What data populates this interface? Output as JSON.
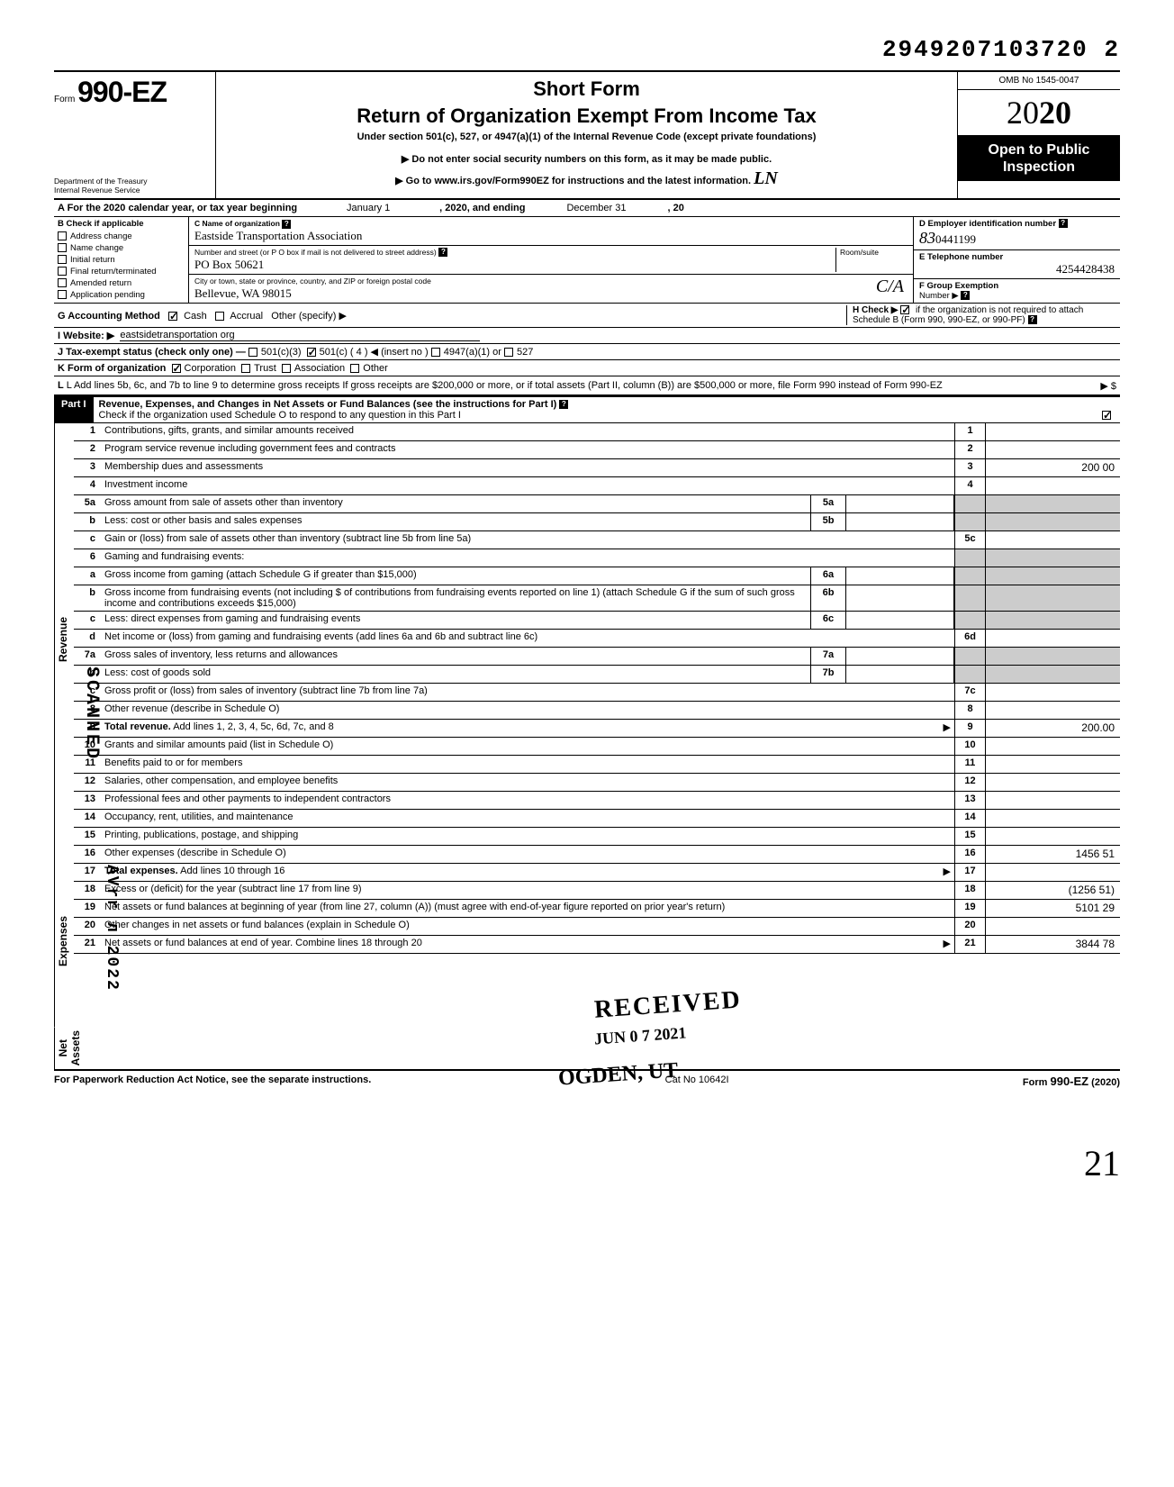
{
  "top_id": "2949207103720 2",
  "form": {
    "prefix": "Form",
    "number": "990-EZ",
    "dept": "Department of the Treasury\nInternal Revenue Service"
  },
  "header": {
    "short_form": "Short Form",
    "title": "Return of Organization Exempt From Income Tax",
    "under": "Under section 501(c), 527, or 4947(a)(1) of the Internal Revenue Code (except private foundations)",
    "note1": "▶ Do not enter social security numbers on this form, as it may be made public.",
    "note2": "▶ Go to www.irs.gov/Form990EZ for instructions and the latest information."
  },
  "right": {
    "omb": "OMB No 1545-0047",
    "year_light": "20",
    "year_bold": "20",
    "open": "Open to Public\nInspection"
  },
  "row_a": {
    "prefix": "A For the 2020 calendar year, or tax year beginning",
    "begin": "January 1",
    "mid": ", 2020, and ending",
    "end": "December 31",
    "suffix": ", 20"
  },
  "col_b": {
    "header": "B Check if applicable",
    "items": [
      "Address change",
      "Name change",
      "Initial return",
      "Final return/terminated",
      "Amended return",
      "Application pending"
    ]
  },
  "org": {
    "c_label": "C Name of organization",
    "name": "Eastside Transportation Association",
    "addr_label": "Number and street (or P O  box if mail is not delivered to street address)",
    "room_label": "Room/suite",
    "addr": "PO Box 50621",
    "city_label": "City or town, state or province, country, and ZIP or foreign postal code",
    "city": "Bellevue, WA  98015"
  },
  "col_d": {
    "d_label": "D Employer identification number",
    "ein_prefix": "83",
    "ein": "0441199",
    "e_label": "E Telephone number",
    "phone": "4254428438",
    "f_label": "F Group Exemption",
    "f_label2": "Number ▶"
  },
  "lines": {
    "g": "G Accounting Method",
    "g_cash": "Cash",
    "g_accrual": "Accrual",
    "g_other": "Other (specify) ▶",
    "h": "H Check ▶",
    "h_text": "if the organization is not required to attach Schedule B (Form 990, 990-EZ, or 990-PF)",
    "i": "I  Website: ▶",
    "i_val": "eastsidetransportation org",
    "j": "J  Tax-exempt status (check only one) —",
    "j_501c3": "501(c)(3)",
    "j_501c": "501(c) (",
    "j_501c_num": "4",
    "j_insert": ") ◀ (insert no )",
    "j_4947": "4947(a)(1) or",
    "j_527": "527",
    "k": "K Form of organization",
    "k_corp": "Corporation",
    "k_trust": "Trust",
    "k_assoc": "Association",
    "k_other": "Other",
    "l": "L Add lines 5b, 6c, and 7b to line 9 to determine gross receipts  If gross receipts are $200,000 or more, or if total assets (Part II, column (B)) are $500,000 or more, file Form 990 instead of Form 990-EZ",
    "l_arrow": "▶  $"
  },
  "part1": {
    "label": "Part I",
    "title": "Revenue, Expenses, and Changes in Net Assets or Fund Balances (see the instructions for Part I)",
    "check": "Check if the organization used Schedule O to respond to any question in this Part I"
  },
  "side_sections": {
    "revenue": "Revenue",
    "expenses": "Expenses",
    "netassets": "Net Assets"
  },
  "rows": [
    {
      "n": "1",
      "d": "Contributions, gifts, grants, and similar amounts received",
      "rn": "1",
      "rv": ""
    },
    {
      "n": "2",
      "d": "Program service revenue including government fees and contracts",
      "rn": "2",
      "rv": ""
    },
    {
      "n": "3",
      "d": "Membership dues and assessments",
      "rn": "3",
      "rv": "200 00"
    },
    {
      "n": "4",
      "d": "Investment income",
      "rn": "4",
      "rv": ""
    },
    {
      "n": "5a",
      "d": "Gross amount from sale of assets other than inventory",
      "sub": "5a"
    },
    {
      "n": "b",
      "d": "Less: cost or other basis and sales expenses",
      "sub": "5b"
    },
    {
      "n": "c",
      "d": "Gain or (loss) from sale of assets other than inventory (subtract line 5b from line 5a)",
      "rn": "5c",
      "rv": ""
    },
    {
      "n": "6",
      "d": "Gaming and fundraising events:"
    },
    {
      "n": "a",
      "d": "Gross income from gaming (attach Schedule G if greater than $15,000)",
      "sub": "6a"
    },
    {
      "n": "b",
      "d": "Gross income from fundraising events (not including  $                         of contributions from fundraising events reported on line 1) (attach Schedule G if the sum of such gross income and contributions exceeds $15,000)",
      "sub": "6b"
    },
    {
      "n": "c",
      "d": "Less: direct expenses from gaming and fundraising events",
      "sub": "6c"
    },
    {
      "n": "d",
      "d": "Net income or (loss) from gaming and fundraising events (add lines 6a and 6b and subtract line 6c)",
      "rn": "6d",
      "rv": ""
    },
    {
      "n": "7a",
      "d": "Gross sales of inventory, less returns and allowances",
      "sub": "7a"
    },
    {
      "n": "b",
      "d": "Less: cost of goods sold",
      "sub": "7b"
    },
    {
      "n": "c",
      "d": "Gross profit or (loss) from sales of inventory (subtract line 7b from line 7a)",
      "rn": "7c",
      "rv": ""
    },
    {
      "n": "8",
      "d": "Other revenue (describe in Schedule O)",
      "rn": "8",
      "rv": ""
    },
    {
      "n": "9",
      "d": "Total revenue. Add lines 1, 2, 3, 4, 5c, 6d, 7c, and 8",
      "rn": "9",
      "rv": "200.00",
      "bold": true,
      "arrow": true
    },
    {
      "n": "10",
      "d": "Grants and similar amounts paid (list in Schedule O)",
      "rn": "10",
      "rv": ""
    },
    {
      "n": "11",
      "d": "Benefits paid to or for members",
      "rn": "11",
      "rv": ""
    },
    {
      "n": "12",
      "d": "Salaries, other compensation, and employee benefits",
      "rn": "12",
      "rv": ""
    },
    {
      "n": "13",
      "d": "Professional fees and other payments to independent contractors",
      "rn": "13",
      "rv": ""
    },
    {
      "n": "14",
      "d": "Occupancy, rent, utilities, and maintenance",
      "rn": "14",
      "rv": ""
    },
    {
      "n": "15",
      "d": "Printing, publications, postage, and shipping",
      "rn": "15",
      "rv": ""
    },
    {
      "n": "16",
      "d": "Other expenses (describe in Schedule O)",
      "rn": "16",
      "rv": "1456 51"
    },
    {
      "n": "17",
      "d": "Total expenses. Add lines 10 through 16",
      "rn": "17",
      "rv": "",
      "bold": true,
      "arrow": true
    },
    {
      "n": "18",
      "d": "Excess or (deficit) for the year (subtract line 17 from line 9)",
      "rn": "18",
      "rv": "(1256 51)"
    },
    {
      "n": "19",
      "d": "Net assets or fund balances at beginning of year (from line 27, column (A)) (must agree with end-of-year figure reported on prior year's return)",
      "rn": "19",
      "rv": "5101 29"
    },
    {
      "n": "20",
      "d": "Other changes in net assets or fund balances (explain in Schedule O)",
      "rn": "20",
      "rv": ""
    },
    {
      "n": "21",
      "d": "Net assets or fund balances at end of year. Combine lines 18 through 20",
      "rn": "21",
      "rv": "3844 78",
      "arrow": true
    }
  ],
  "footer": {
    "left": "For Paperwork Reduction Act Notice, see the separate instructions.",
    "mid": "Cat  No  10642I",
    "right": "Form 990-EZ (2020)"
  },
  "stamps": {
    "received": "RECEIVED",
    "date": "JUN 0 7 2021",
    "ogden": "OGDEN, UT",
    "scanned": "SCANNED",
    "side_date": "AVrr л 2022"
  },
  "initials": "C/A",
  "page_num": "21"
}
